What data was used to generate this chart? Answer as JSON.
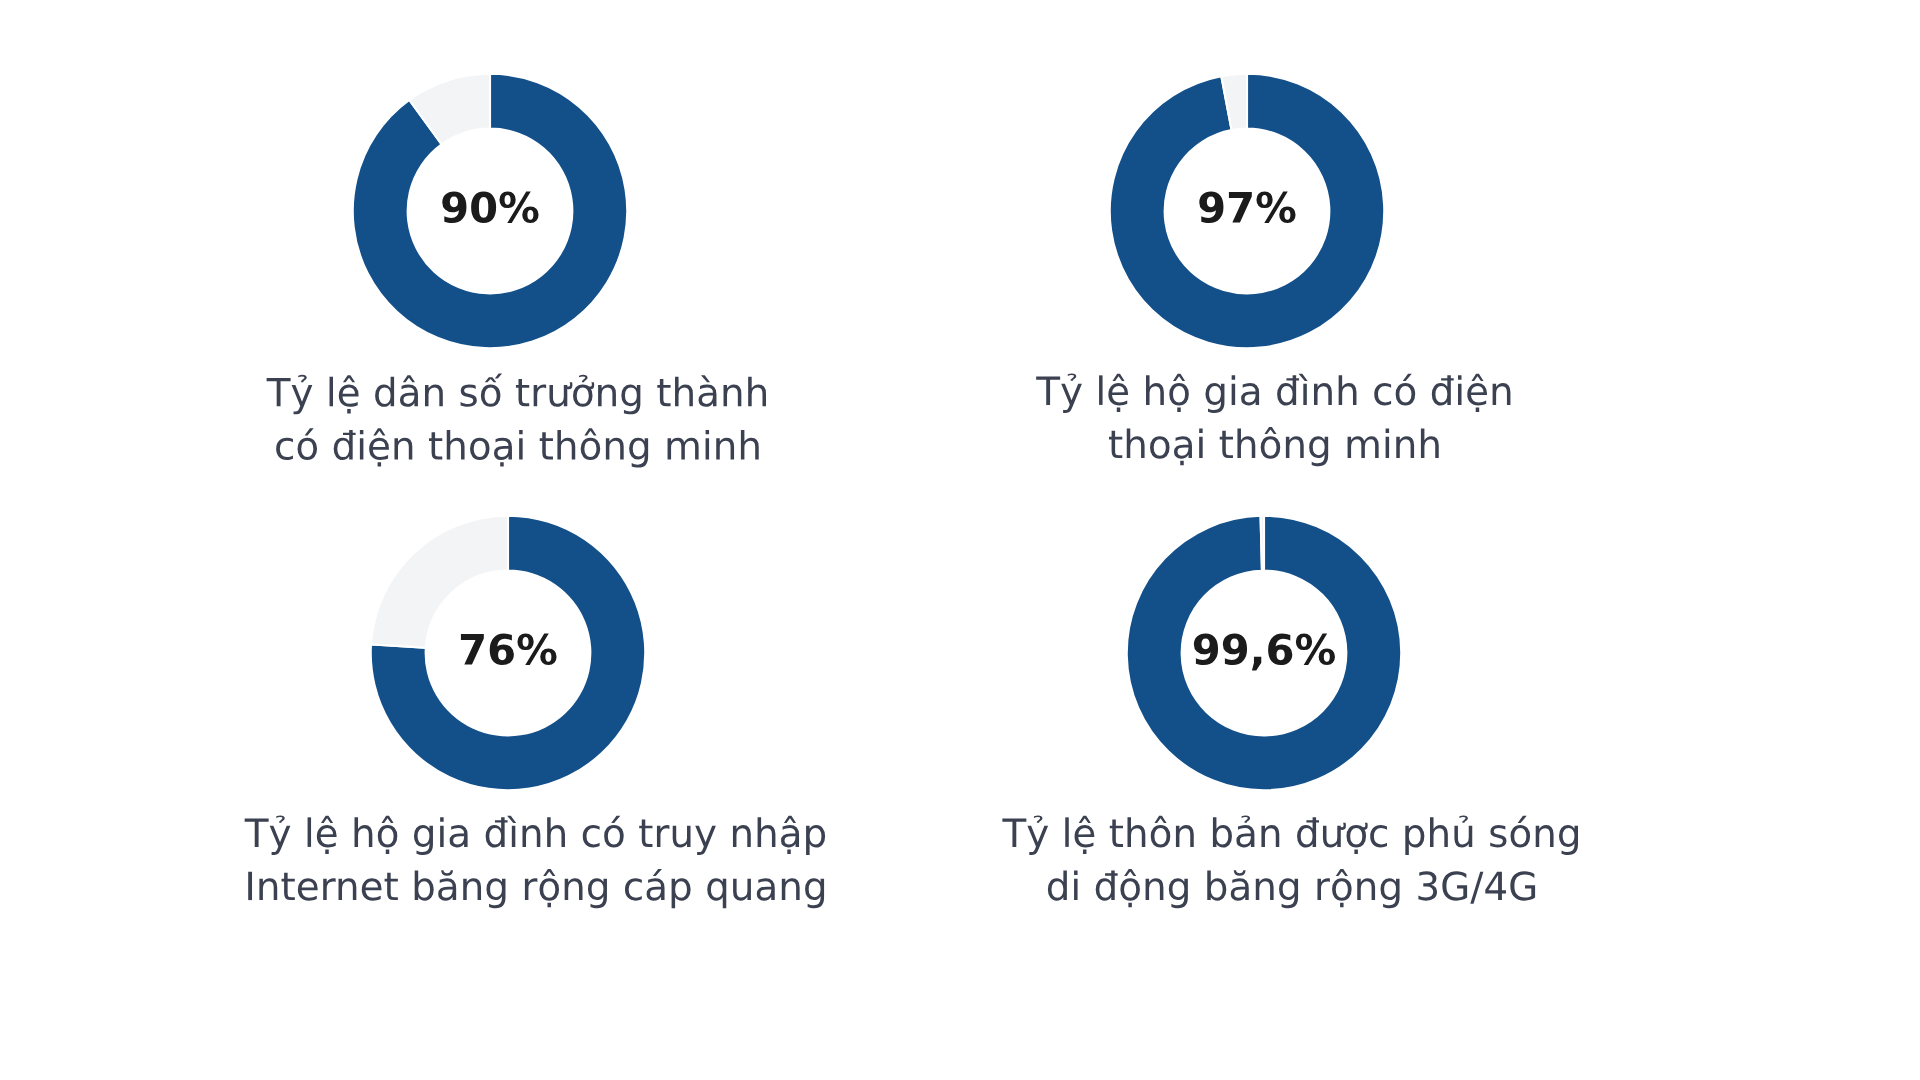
{
  "chart_data": [
    {
      "type": "donut",
      "title": "Tỷ lệ dân số trưởng thành\ncó điện thoại thông minh",
      "categories": [
        null,
        null
      ],
      "values": [
        90,
        10
      ],
      "colors": [
        "#13508a",
        "#f3f4f6"
      ],
      "value_labels": [
        "90%",
        null
      ]
    },
    {
      "type": "donut",
      "title": "Tỷ lệ hộ gia đình có điện\nthoại thông minh",
      "categories": [
        null,
        null
      ],
      "values": [
        97,
        3
      ],
      "colors": [
        "#13508a",
        "#f3f4f6"
      ],
      "value_labels": [
        "97%",
        null
      ]
    },
    {
      "type": "donut",
      "title": "Tỷ lệ hộ gia đình có truy nhập\nInternet băng rộng cáp quang",
      "categories": [
        null,
        null
      ],
      "values": [
        76,
        24
      ],
      "colors": [
        "#13508a",
        "#f3f4f6"
      ],
      "value_labels": [
        "76%",
        null
      ]
    },
    {
      "type": "donut",
      "title": "Tỷ lệ thôn bản được phủ sóng\ndi động băng rộng 3G/4G",
      "categories": [
        null,
        null
      ],
      "values": [
        99.6,
        0.4
      ],
      "colors": [
        "#13508a",
        "#f3f4f6"
      ],
      "value_labels": [
        "99,6%",
        null
      ]
    }
  ]
}
